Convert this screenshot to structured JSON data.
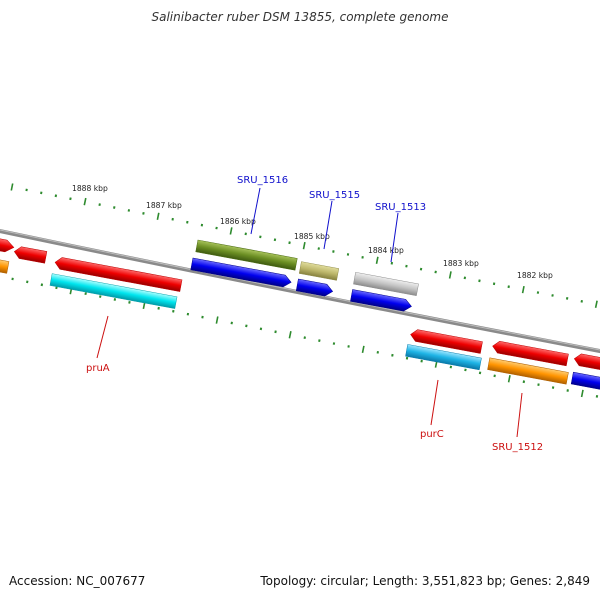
{
  "title": "Salinibacter ruber DSM 13855, complete genome",
  "footer": {
    "accession": "Accession: NC_007677",
    "topology": "Topology: circular; Length: 3,551,823 bp; Genes: 2,849"
  },
  "colors": {
    "backbone": "#888888",
    "ruler": "#2e8b2e",
    "label_blue": "#1010cc",
    "label_red": "#cc1010"
  },
  "ruler_labels": [
    "1888 kbp",
    "1887 kbp",
    "1886 kbp",
    "1885 kbp",
    "1884 kbp",
    "1883 kbp",
    "1882 kbp"
  ],
  "gene_labels": {
    "sru_1516": "SRU_1516",
    "sru_1515": "SRU_1515",
    "sru_1513": "SRU_1513",
    "prua": "pruA",
    "purc": "purC",
    "sru_1512": "SRU_1512"
  }
}
